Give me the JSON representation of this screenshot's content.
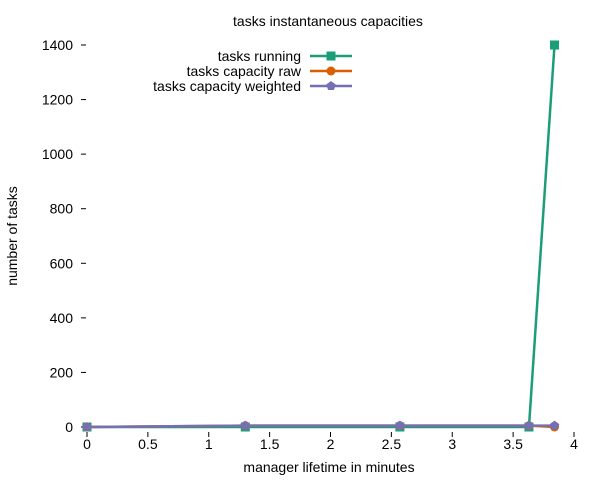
{
  "chart_data": {
    "type": "line",
    "title": "tasks instantaneous capacities",
    "xlabel": "manager lifetime in minutes",
    "ylabel": "number of tasks",
    "xlim": [
      0,
      4
    ],
    "ylim": [
      0,
      1400
    ],
    "xticks": [
      0,
      0.5,
      1,
      1.5,
      2,
      2.5,
      3,
      3.5,
      4
    ],
    "xtick_labels": [
      "0",
      "0.5",
      "1",
      "1.5",
      "2",
      "2.5",
      "3",
      "3.5",
      "4"
    ],
    "yticks": [
      0,
      200,
      400,
      600,
      800,
      1000,
      1200,
      1400
    ],
    "ytick_labels": [
      "0",
      "200",
      "400",
      "600",
      "800",
      "1000",
      "1200",
      "1400"
    ],
    "legend_position": "top-left",
    "series": [
      {
        "name": "tasks running",
        "color": "#1b9e77",
        "marker": "square",
        "x": [
          0,
          1.3,
          2.57,
          3.63,
          3.84
        ],
        "y": [
          0,
          0,
          0,
          0,
          1400
        ]
      },
      {
        "name": "tasks capacity raw",
        "color": "#d95f02",
        "marker": "circle",
        "x": [
          0,
          1.3,
          2.57,
          3.63,
          3.84
        ],
        "y": [
          0,
          5,
          5,
          5,
          0
        ]
      },
      {
        "name": "tasks capacity weighted",
        "color": "#7570b3",
        "marker": "pentagon",
        "x": [
          0,
          1.3,
          2.57,
          3.63,
          3.84
        ],
        "y": [
          0,
          5,
          5,
          5,
          5
        ]
      }
    ]
  }
}
